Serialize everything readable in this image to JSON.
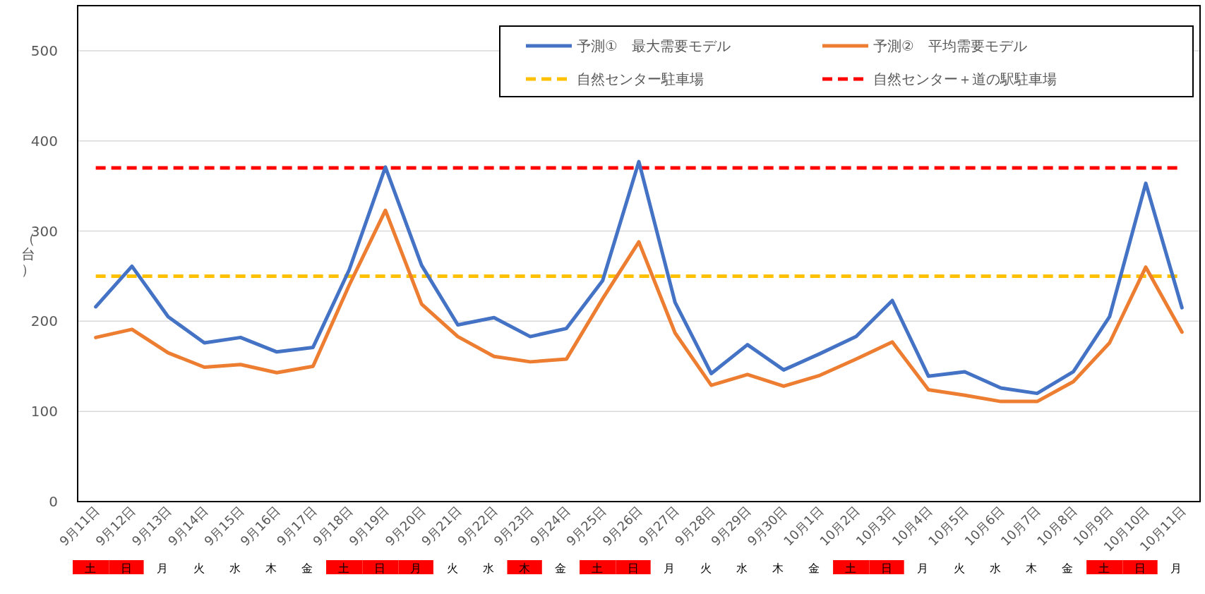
{
  "chart_data": [
    {
      "type": "line",
      "ylabel": "（台）",
      "ylim": [
        0,
        550
      ],
      "yticks": [
        0,
        100,
        200,
        300,
        400,
        500
      ],
      "grid": "y",
      "legend": "top right",
      "line_style": "solid",
      "marker": "none",
      "categories": [
        "9月11日",
        "9月12日",
        "9月13日",
        "9月14日",
        "9月15日",
        "9月16日",
        "9月17日",
        "9月18日",
        "9月19日",
        "9月20日",
        "9月21日",
        "9月22日",
        "9月23日",
        "9月24日",
        "9月25日",
        "9月26日",
        "9月27日",
        "9月28日",
        "9月29日",
        "9月30日",
        "10月1日",
        "10月2日",
        "10月3日",
        "10月4日",
        "10月5日",
        "10月6日",
        "10月7日",
        "10月8日",
        "10月9日",
        "10月10日",
        "10月11日"
      ],
      "series": [
        {
          "name": "予測①　最大需要モデル",
          "color": "#4472c4",
          "values": [
            216,
            261,
            205,
            176,
            182,
            166,
            171,
            257,
            371,
            262,
            196,
            204,
            183,
            192,
            245,
            377,
            221,
            142,
            174,
            146,
            164,
            183,
            223,
            139,
            144,
            126,
            120,
            144,
            205,
            353,
            215
          ]
        },
        {
          "name": "予測②　平均需要モデル",
          "color": "#ed7d31",
          "values": [
            182,
            191,
            165,
            149,
            152,
            143,
            150,
            240,
            323,
            219,
            183,
            161,
            155,
            158,
            225,
            288,
            187,
            129,
            141,
            128,
            140,
            158,
            177,
            124,
            118,
            111,
            111,
            133,
            176,
            260,
            188
          ]
        }
      ],
      "ref_lines": [
        {
          "axis": "y",
          "value": 250,
          "label": "自然センター駐車場",
          "color": "#ffc000",
          "line_style": "dashed"
        },
        {
          "axis": "y",
          "value": 370,
          "label": "自然センター＋道の駅駐車場",
          "color": "#ff0000",
          "line_style": "dashed"
        }
      ]
    },
    {
      "type": "other",
      "categories": [
        "土",
        "日",
        "月",
        "火",
        "水",
        "木",
        "金",
        "土",
        "日",
        "月",
        "火",
        "水",
        "木",
        "金",
        "土",
        "日",
        "月",
        "火",
        "水",
        "木",
        "金",
        "土",
        "日",
        "月",
        "火",
        "水",
        "木",
        "金",
        "土",
        "日",
        "月"
      ],
      "colors": [
        "#ff0000",
        "#ff0000",
        "#ffffff",
        "#ffffff",
        "#ffffff",
        "#ffffff",
        "#ffffff",
        "#ff0000",
        "#ff0000",
        "#ff0000",
        "#ffffff",
        "#ffffff",
        "#ff0000",
        "#ffffff",
        "#ff0000",
        "#ff0000",
        "#ffffff",
        "#ffffff",
        "#ffffff",
        "#ffffff",
        "#ffffff",
        "#ff0000",
        "#ff0000",
        "#ffffff",
        "#ffffff",
        "#ffffff",
        "#ffffff",
        "#ffffff",
        "#ff0000",
        "#ff0000",
        "#ffffff"
      ]
    }
  ]
}
